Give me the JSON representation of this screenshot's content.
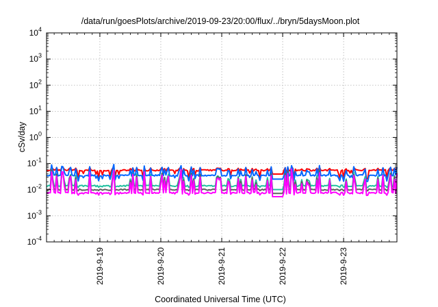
{
  "chart_data": {
    "type": "line",
    "title": "/data/run/goesPlots/archive/2019-09-23/20:00/flux/../bryn/5daysMoon.plot",
    "xlabel": "Coordinated Universal Time (UTC)",
    "ylabel": "cSv/day",
    "yscale": "log",
    "ylim": [
      0.0001,
      10000
    ],
    "xlim": [
      "2019-09-18T03:00",
      "2019-09-23T21:00"
    ],
    "grid": true,
    "legend": "none",
    "y_ticks": [
      {
        "base": "10",
        "exp": "-4"
      },
      {
        "base": "10",
        "exp": "-3"
      },
      {
        "base": "10",
        "exp": "-2"
      },
      {
        "base": "10",
        "exp": "-1"
      },
      {
        "base": "10",
        "exp": "0"
      },
      {
        "base": "10",
        "exp": "1"
      },
      {
        "base": "10",
        "exp": "2"
      },
      {
        "base": "10",
        "exp": "3"
      },
      {
        "base": "10",
        "exp": "4"
      }
    ],
    "x_ticks": [
      "2019-9-19",
      "2019-9-20",
      "2019-9-21",
      "2019-9-22",
      "2019-9-23"
    ],
    "gap": [
      "2019-09-21T20:00",
      "2019-09-22T00:00"
    ],
    "series": [
      {
        "color": "#ff0000",
        "base": 0.055,
        "spike_low": 0.025,
        "spike_high": 0.075
      },
      {
        "color": "#0066ff",
        "base": 0.035,
        "spike_low": 0.02,
        "spike_high": 0.095
      },
      {
        "color": "#20c0a0",
        "base": 0.014,
        "spike_low": 0.012,
        "spike_high": 0.06
      },
      {
        "color": "#606060",
        "base": 0.01,
        "spike_low": 0.009,
        "spike_high": 0.065
      },
      {
        "color": "#ff00ff",
        "base": 0.0075,
        "spike_low": 0.006,
        "spike_high": 0.065
      }
    ]
  }
}
